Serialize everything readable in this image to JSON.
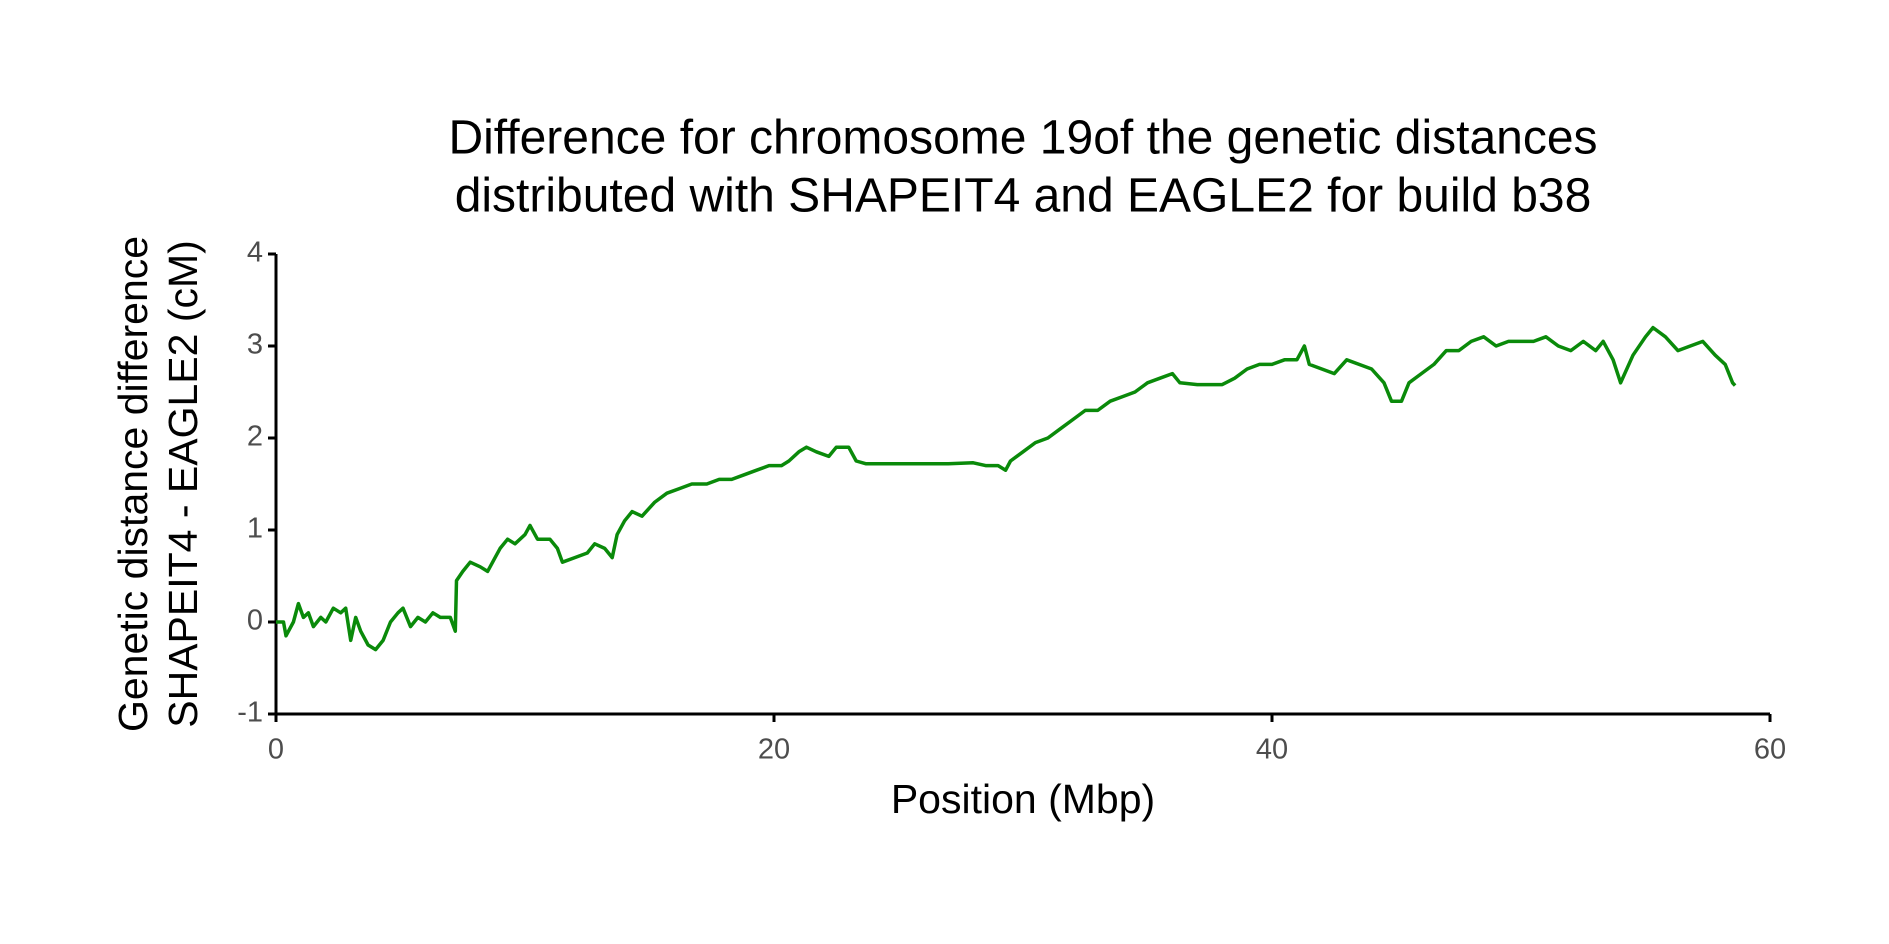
{
  "chart_data": {
    "type": "line",
    "title": [
      "Difference for chromosome 19of the genetic distances",
      "distributed with SHAPEIT4 and EAGLE2 for build b38"
    ],
    "x_label": "Position (Mbp)",
    "y_label": [
      "Genetic distance difference",
      "SHAPEIT4 - EAGLE2 (cM)"
    ],
    "xlim": [
      0,
      60
    ],
    "xticks": [
      0,
      20,
      40,
      60
    ],
    "ylim": [
      -1,
      4
    ],
    "yticks": [
      -1,
      0,
      1,
      2,
      3,
      4
    ],
    "grid": false,
    "series": [
      {
        "color": "#0a8a0a",
        "x": [
          0,
          0.3,
          0.4,
          0.7,
          0.9,
          1.1,
          1.3,
          1.5,
          1.8,
          2.0,
          2.3,
          2.6,
          2.8,
          3.0,
          3.2,
          3.4,
          3.7,
          4.0,
          4.3,
          4.6,
          4.9,
          5.1,
          5.4,
          5.7,
          6.0,
          6.3,
          6.6,
          7.0,
          7.2,
          7.25,
          7.5,
          7.8,
          8.2,
          8.5,
          8.8,
          9.0,
          9.3,
          9.6,
          10.0,
          10.2,
          10.5,
          11.0,
          11.3,
          11.5,
          12.0,
          12.5,
          12.8,
          13.2,
          13.5,
          13.7,
          14.0,
          14.3,
          14.7,
          15.2,
          15.7,
          16.2,
          16.7,
          17.3,
          17.8,
          18.3,
          18.8,
          19.3,
          19.8,
          20.3,
          20.6,
          21.0,
          21.3,
          21.7,
          22.2,
          22.5,
          23.0,
          23.3,
          23.7,
          25,
          27,
          28.0,
          28.5,
          29.0,
          29.3,
          29.5,
          30.0,
          30.5,
          31.0,
          31.5,
          32.0,
          32.5,
          33.0,
          33.5,
          34.0,
          34.5,
          35.0,
          35.5,
          36.0,
          36.3,
          37,
          38,
          38.5,
          39.0,
          39.5,
          40.0,
          40.5,
          41.0,
          41.3,
          41.5,
          42.0,
          42.5,
          43.0,
          43.5,
          44.0,
          44.5,
          44.8,
          45.2,
          45.5,
          46.0,
          46.5,
          47.0,
          47.5,
          48.0,
          48.5,
          49.0,
          49.5,
          50.0,
          50.5,
          51.0,
          51.5,
          52.0,
          52.5,
          53.0,
          53.3,
          53.7,
          54.0,
          54.5,
          55.0,
          55.3,
          55.8,
          56.3,
          56.8,
          57.3,
          57.8,
          58.2,
          58.5,
          58.6
        ],
        "values": [
          0,
          0,
          -0.15,
          0,
          0.2,
          0.05,
          0.1,
          -0.05,
          0.05,
          0,
          0.15,
          0.1,
          0.15,
          -0.2,
          0.05,
          -0.1,
          -0.25,
          -0.3,
          -0.2,
          0,
          0.1,
          0.15,
          -0.05,
          0.05,
          0,
          0.1,
          0.05,
          0.05,
          -0.1,
          0.45,
          0.55,
          0.65,
          0.6,
          0.55,
          0.7,
          0.8,
          0.9,
          0.85,
          0.95,
          1.05,
          0.9,
          0.9,
          0.8,
          0.65,
          0.7,
          0.75,
          0.85,
          0.8,
          0.7,
          0.95,
          1.1,
          1.2,
          1.15,
          1.3,
          1.4,
          1.45,
          1.5,
          1.5,
          1.55,
          1.55,
          1.6,
          1.65,
          1.7,
          1.7,
          1.75,
          1.85,
          1.9,
          1.85,
          1.8,
          1.9,
          1.9,
          1.75,
          1.72,
          1.72,
          1.72,
          1.73,
          1.7,
          1.7,
          1.65,
          1.75,
          1.85,
          1.95,
          2.0,
          2.1,
          2.2,
          2.3,
          2.3,
          2.4,
          2.45,
          2.5,
          2.6,
          2.65,
          2.7,
          2.6,
          2.58,
          2.58,
          2.65,
          2.75,
          2.8,
          2.8,
          2.85,
          2.85,
          3.0,
          2.8,
          2.75,
          2.7,
          2.85,
          2.8,
          2.75,
          2.6,
          2.4,
          2.4,
          2.6,
          2.7,
          2.8,
          2.95,
          2.95,
          3.05,
          3.1,
          3.0,
          3.05,
          3.05,
          3.05,
          3.1,
          3.0,
          2.95,
          3.05,
          2.95,
          3.05,
          2.85,
          2.6,
          2.9,
          3.1,
          3.2,
          3.1,
          2.95,
          3.0,
          3.05,
          2.9,
          2.8,
          2.6,
          2.57
        ]
      }
    ]
  }
}
